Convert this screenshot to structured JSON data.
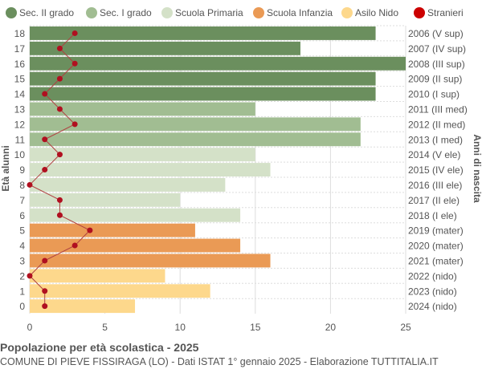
{
  "chart_data": {
    "type": "bar",
    "orientation": "horizontal",
    "title": "Popolazione per età scolastica - 2025",
    "subtitle": "COMUNE DI PIEVE FISSIRAGA (LO) - Dati ISTAT 1° gennaio 2025 - Elaborazione TUTTITALIA.IT",
    "ylabel": "Età alunni",
    "ylabel_right": "Anni di nascita",
    "xlim": [
      0,
      25
    ],
    "xticks": [
      0,
      5,
      10,
      15,
      20,
      25
    ],
    "grid": true,
    "legend_placement": "top",
    "legend": [
      {
        "name": "Sec. II grado",
        "color": "#6b8f5e"
      },
      {
        "name": "Sec. I grado",
        "color": "#a1bd92"
      },
      {
        "name": "Scuola Primaria",
        "color": "#d4e1c8"
      },
      {
        "name": "Scuola Infanzia",
        "color": "#ea9a55"
      },
      {
        "name": "Asilo Nido",
        "color": "#fdd88c"
      },
      {
        "name": "Stranieri",
        "color": "#cc0000"
      }
    ],
    "ages": [
      18,
      17,
      16,
      15,
      14,
      13,
      12,
      11,
      10,
      9,
      8,
      7,
      6,
      5,
      4,
      3,
      2,
      1,
      0
    ],
    "birth_years": [
      "2006 (V sup)",
      "2007 (IV sup)",
      "2008 (III sup)",
      "2009 (II sup)",
      "2010 (I sup)",
      "2011 (III med)",
      "2012 (II med)",
      "2013 (I med)",
      "2014 (V ele)",
      "2015 (IV ele)",
      "2016 (III ele)",
      "2017 (II ele)",
      "2018 (I ele)",
      "2019 (mater)",
      "2020 (mater)",
      "2021 (mater)",
      "2022 (nido)",
      "2023 (nido)",
      "2024 (nido)"
    ],
    "values": [
      23,
      18,
      25,
      23,
      23,
      15,
      22,
      22,
      15,
      16,
      13,
      10,
      14,
      11,
      14,
      16,
      9,
      12,
      7
    ],
    "category": [
      0,
      0,
      0,
      0,
      0,
      1,
      1,
      1,
      2,
      2,
      2,
      2,
      2,
      3,
      3,
      3,
      4,
      4,
      4
    ],
    "stranieri": [
      3,
      2,
      3,
      2,
      1,
      2,
      3,
      1,
      2,
      1,
      0,
      2,
      2,
      4,
      3,
      1,
      0,
      1,
      1
    ]
  }
}
